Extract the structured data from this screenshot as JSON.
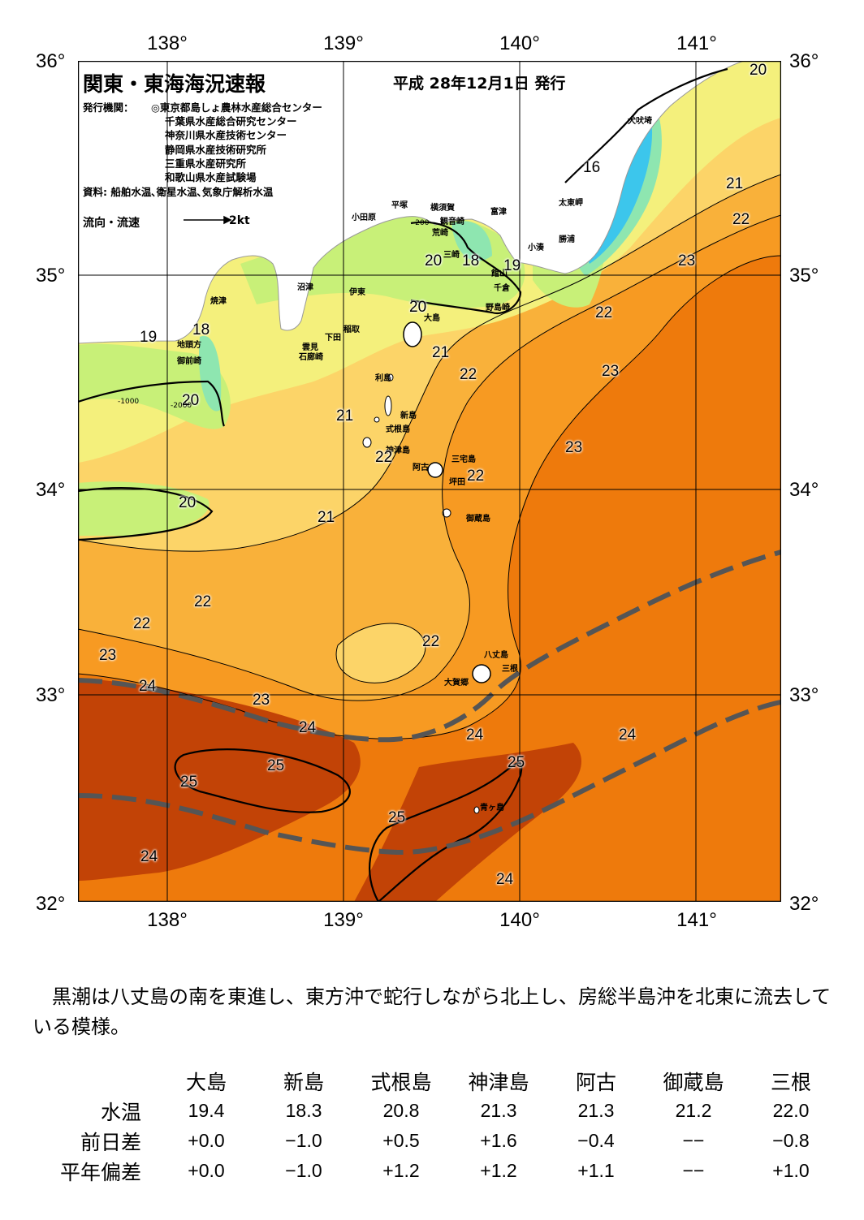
{
  "header": {
    "title": "関東・東海海況速報",
    "date": "平成  28年12月1日 発行",
    "issuer_label": "発行機関：",
    "institutions": [
      "◎東京都島しょ農林水産総合センター",
      "千葉県水産総合研究センター",
      "神奈川県水産技術センター",
      "静岡県水産技術研究所",
      "三重県水産研究所",
      "和歌山県水産試験場"
    ],
    "source": "資料: 船舶水温､衛星水温､気象庁解析水温",
    "legend_label": "流向・流速",
    "legend_scale": "2kt"
  },
  "axes": {
    "lon_labels": [
      "138°",
      "139°",
      "140°",
      "141°"
    ],
    "lat_labels": [
      "36°",
      "35°",
      "34°",
      "33°",
      "32°"
    ]
  },
  "colors": {
    "land": "#ffffff",
    "t16": "#3cc6ec",
    "t18": "#8ee6b0",
    "t19": "#c8f078",
    "t20": "#f4f07c",
    "t21": "#fcd468",
    "t22": "#f9b13a",
    "t23": "#f79a22",
    "t24": "#ee7a0c",
    "t25": "#c24306",
    "kuroshio_axis": "#555555"
  },
  "place_names": [
    "犬吠埼",
    "太東岬",
    "勝浦",
    "小湊",
    "富津",
    "観音崎",
    "横須賀",
    "平塚",
    "小田原",
    "荒崎",
    "館山",
    "千倉",
    "野島崎",
    "三崎",
    "沼津",
    "焼津",
    "伊東",
    "稲取",
    "下田",
    "雲見",
    "石廊崎",
    "地頭方",
    "御前崎",
    "大島",
    "利島",
    "新島",
    "式根島",
    "神津島",
    "阿古",
    "三宅島",
    "坪田",
    "御蔵島",
    "八丈島",
    "三根",
    "大賀郷",
    "青ヶ島"
  ],
  "isotherm_labels": [
    "20",
    "16",
    "21",
    "22",
    "23",
    "20",
    "19",
    "18",
    "20",
    "18",
    "19",
    "22",
    "23",
    "22",
    "19",
    "20",
    "21",
    "22",
    "23",
    "21",
    "22",
    "22",
    "20",
    "21",
    "23",
    "22",
    "22",
    "23",
    "24",
    "22",
    "23",
    "24",
    "24",
    "24",
    "25",
    "25",
    "25",
    "25",
    "24",
    "24"
  ],
  "depth_labels": [
    "-200",
    "-1000",
    "-2000"
  ],
  "comment": "黒潮は八丈島の南を東進し、東方沖で蛇行しながら北上し、房総半島沖を北東に流去している模様。",
  "table": {
    "columns": [
      "大島",
      "新島",
      "式根島",
      "神津島",
      "阿古",
      "御蔵島",
      "三根"
    ],
    "rows": [
      {
        "label": "水温",
        "values": [
          "19.4",
          "18.3",
          "20.8",
          "21.3",
          "21.3",
          "21.2",
          "22.0"
        ]
      },
      {
        "label": "前日差",
        "values": [
          "+0.0",
          "−1.0",
          "+0.5",
          "+1.6",
          "−0.4",
          "−−",
          "−0.8"
        ]
      },
      {
        "label": "平年偏差",
        "values": [
          "+0.0",
          "−1.0",
          "+1.2",
          "+1.2",
          "+1.1",
          "−−",
          "+1.0"
        ]
      }
    ]
  }
}
